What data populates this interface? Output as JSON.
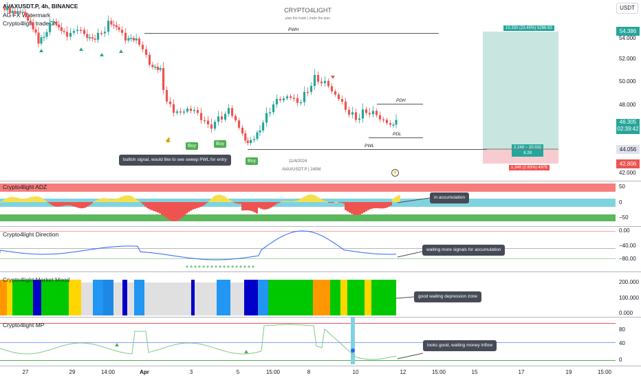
{
  "header": {
    "symbol_line": "AVAXUSDT.P, 4h, BINANCE",
    "indicator1": "AG FX Watermark",
    "indicator2": "Crypto4light tradeON",
    "watermark_title": "CRYPTO4LIGHT",
    "watermark_subtitle": "plan the trade | trade the plan",
    "currency_button": "USDT",
    "date_watermark": "11/4/2024",
    "symbol_watermark": "AVAXUSDT.P | 240M"
  },
  "price_axis": {
    "labels": [
      "54.000",
      "52.000",
      "50.000",
      "48.000",
      "44.000",
      "42.000"
    ],
    "tag_top": "54.386",
    "tag_current": "46.305",
    "tag_countdown": "02:39:42",
    "tag_mid": "44.056",
    "tag_low": "42.806"
  },
  "levels": {
    "pwh": "PWH",
    "pdh": "PDH",
    "pdl": "PDL",
    "pwl": "PWL"
  },
  "position": {
    "target_label": "10.330 (23.45%) 5266.93",
    "mid_label_1": "2.249 ~ 20.032",
    "mid_label_2": "8.28",
    "stop_label": "1.348 (2.83%) 4976"
  },
  "signals": {
    "buy1": "Buy",
    "buy2": "Buy",
    "buy3": "Buy"
  },
  "notes": {
    "main": "bullish signal, would like to see sweep PWL for entry",
    "adz": "in accumulation",
    "direction": "waiting more signals for accumulation",
    "mood": "good waiting depression zone",
    "mp": "looks good, waiting money inflow"
  },
  "panes": {
    "adz": {
      "title": "Crypto4light ADZ",
      "axis": [
        "50",
        "0",
        "−50"
      ]
    },
    "direction": {
      "title": "Crypto4light Direction",
      "axis": [
        "0.00",
        "−40.00",
        "−80.00"
      ]
    },
    "mood": {
      "title": "Crypto4light Market Mood",
      "axis": [
        "200.000",
        "100.000",
        "0.000"
      ]
    },
    "mp": {
      "title": "Crypto4light MP",
      "axis": [
        "80",
        "40",
        "0"
      ]
    }
  },
  "time_axis": [
    "27",
    "29",
    "14:00",
    "Apr",
    "3",
    "5",
    "15:00",
    "8",
    "10",
    "12",
    "15:00",
    "15",
    "17",
    "19",
    "15:00"
  ],
  "colors": {
    "up": "#26a69a",
    "down": "#ef5350",
    "target_zone": "#c8e6df",
    "stop_zone": "#f7ccd0",
    "buy": "#4caf50",
    "adz_red": "#f77c7c",
    "adz_cyan": "#7fd3e0",
    "adz_green": "#5cb85c",
    "line_blue": "#2962ff"
  }
}
